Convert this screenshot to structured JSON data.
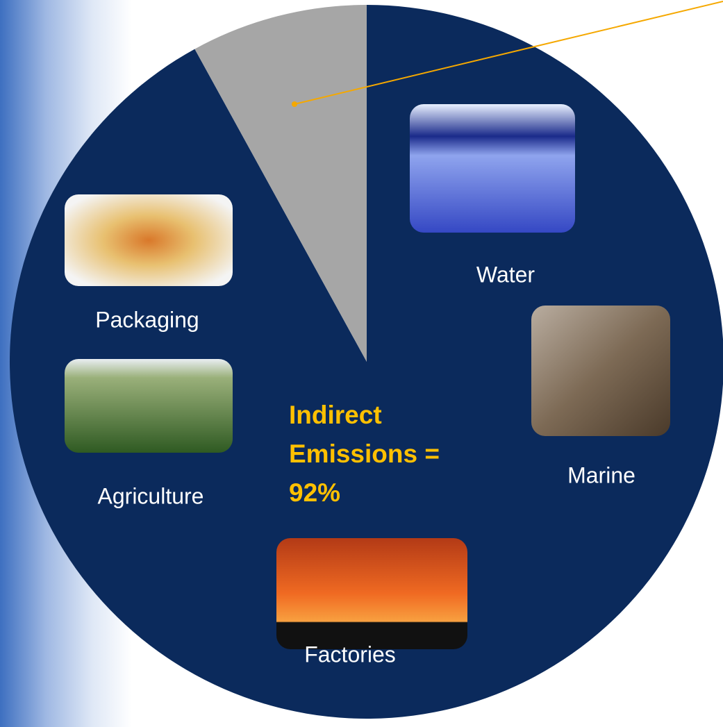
{
  "chart_data": {
    "type": "pie",
    "values": [
      92,
      8
    ],
    "colors": [
      "#0b2a5c",
      "#a6a6a6"
    ],
    "value_labels": [
      "92%",
      null
    ],
    "annotation": [
      "Indirect",
      "Emissions ="
    ],
    "image_labels": [
      "Water",
      "Marine",
      "Factories",
      "Agriculture",
      "Packaging"
    ]
  }
}
